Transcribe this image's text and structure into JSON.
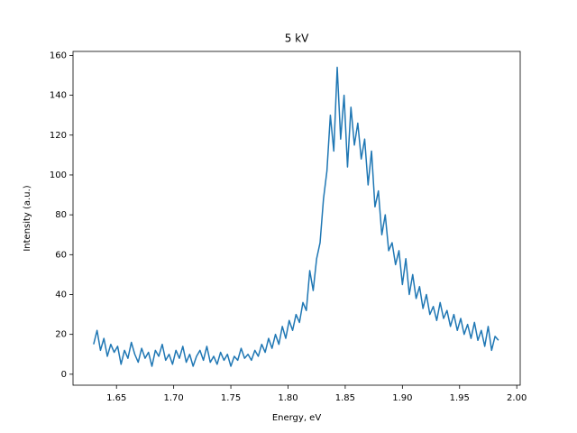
{
  "chart_data": {
    "type": "line",
    "title": "5 kV",
    "xlabel": "Energy, eV",
    "ylabel": "Intensity (a.u.)",
    "x": [
      1.63,
      1.633,
      1.636,
      1.639,
      1.642,
      1.645,
      1.648,
      1.651,
      1.654,
      1.657,
      1.66,
      1.663,
      1.666,
      1.669,
      1.672,
      1.675,
      1.678,
      1.681,
      1.684,
      1.687,
      1.69,
      1.693,
      1.696,
      1.699,
      1.702,
      1.705,
      1.708,
      1.711,
      1.714,
      1.717,
      1.72,
      1.723,
      1.726,
      1.729,
      1.732,
      1.735,
      1.738,
      1.741,
      1.744,
      1.747,
      1.75,
      1.753,
      1.756,
      1.759,
      1.762,
      1.765,
      1.768,
      1.771,
      1.774,
      1.777,
      1.78,
      1.783,
      1.786,
      1.789,
      1.792,
      1.795,
      1.798,
      1.801,
      1.804,
      1.807,
      1.81,
      1.813,
      1.816,
      1.819,
      1.822,
      1.825,
      1.828,
      1.831,
      1.834,
      1.837,
      1.84,
      1.843,
      1.846,
      1.849,
      1.852,
      1.855,
      1.858,
      1.861,
      1.864,
      1.867,
      1.87,
      1.873,
      1.876,
      1.879,
      1.882,
      1.885,
      1.888,
      1.891,
      1.894,
      1.897,
      1.9,
      1.903,
      1.906,
      1.909,
      1.912,
      1.915,
      1.918,
      1.921,
      1.924,
      1.927,
      1.93,
      1.933,
      1.936,
      1.939,
      1.942,
      1.945,
      1.948,
      1.951,
      1.954,
      1.957,
      1.96,
      1.963,
      1.966,
      1.969,
      1.972,
      1.975,
      1.978,
      1.981,
      1.984
    ],
    "series": [
      {
        "color": "#1f77b4",
        "values": [
          15,
          22,
          12,
          18,
          9,
          15,
          11,
          14,
          5,
          12,
          8,
          16,
          10,
          6,
          13,
          8,
          11,
          4,
          12,
          9,
          15,
          7,
          10,
          5,
          12,
          8,
          14,
          6,
          10,
          4,
          9,
          12,
          7,
          14,
          6,
          9,
          5,
          11,
          7,
          10,
          4,
          9,
          7,
          13,
          8,
          10,
          7,
          12,
          9,
          15,
          11,
          18,
          13,
          20,
          15,
          24,
          18,
          27,
          22,
          30,
          26,
          36,
          32,
          52,
          42,
          58,
          66,
          88,
          102,
          130,
          112,
          154,
          118,
          140,
          104,
          134,
          115,
          126,
          108,
          118,
          95,
          112,
          84,
          92,
          70,
          80,
          62,
          66,
          55,
          62,
          45,
          58,
          40,
          50,
          38,
          44,
          33,
          40,
          30,
          34,
          27,
          36,
          28,
          32,
          24,
          30,
          22,
          28,
          20,
          25,
          18,
          26,
          17,
          22,
          14,
          24,
          12,
          19,
          17
        ]
      }
    ],
    "xlim": [
      1.612,
      2.003
    ],
    "ylim": [
      -5.5,
      162
    ],
    "xticks": [
      1.65,
      {
        "value": 1.7,
        "label": "1.70"
      },
      1.75,
      {
        "value": 1.8,
        "label": "1.80"
      },
      1.85,
      {
        "value": 1.9,
        "label": "1.90"
      },
      1.95,
      {
        "value": 2.0,
        "label": "2.00"
      }
    ],
    "yticks": [
      0,
      20,
      40,
      60,
      80,
      100,
      120,
      140,
      160
    ]
  }
}
